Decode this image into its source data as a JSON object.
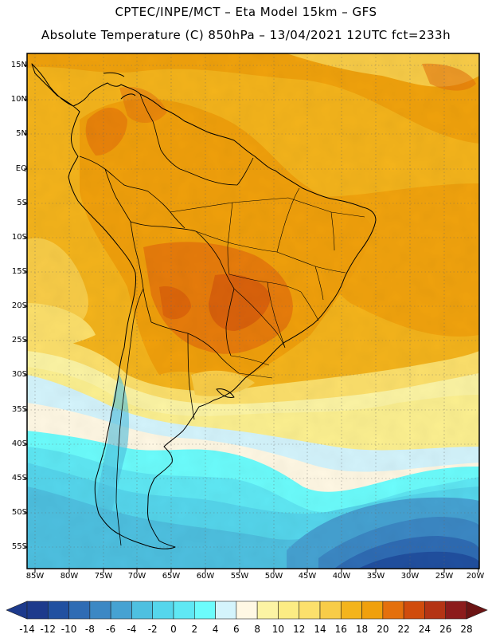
{
  "header": {
    "line1": "CPTEC/INPE/MCT –  Eta Model 15km – GFS",
    "line2": "Absolute Temperature (C) 850hPa – 13/04/2021 12UTC fct=233h"
  },
  "map": {
    "lat_labels": [
      "15N",
      "10N",
      "5N",
      "EQ",
      "5S",
      "10S",
      "15S",
      "20S",
      "25S",
      "30S",
      "35S",
      "40S",
      "45S",
      "50S",
      "55S"
    ],
    "lon_labels": [
      "85W",
      "80W",
      "75W",
      "70W",
      "65W",
      "60W",
      "55W",
      "50W",
      "45W",
      "40W",
      "35W",
      "30W",
      "25W",
      "20W"
    ],
    "variable": "Absolute Temperature",
    "units": "C",
    "level": "850hPa"
  },
  "legend": {
    "labels": [
      "-14",
      "-12",
      "-10",
      "-8",
      "-6",
      "-4",
      "-2",
      "0",
      "2",
      "4",
      "6",
      "8",
      "10",
      "12",
      "14",
      "16",
      "18",
      "20",
      "22",
      "24",
      "26",
      "28"
    ],
    "colors": [
      "#1d3a8c",
      "#1d3a8c",
      "#2150a0",
      "#2f6cb4",
      "#3c88c4",
      "#46a2d2",
      "#4ec0e0",
      "#55d6ec",
      "#5fe8f4",
      "#6cfcfc",
      "#d4f4fc",
      "#fff8e4",
      "#fcf4a4",
      "#fcec84",
      "#fce06c",
      "#f8cc48",
      "#f4b41c",
      "#f0a00c",
      "#e4700c",
      "#d04c0c",
      "#b43414",
      "#8c1c1c",
      "#6c1414"
    ]
  }
}
